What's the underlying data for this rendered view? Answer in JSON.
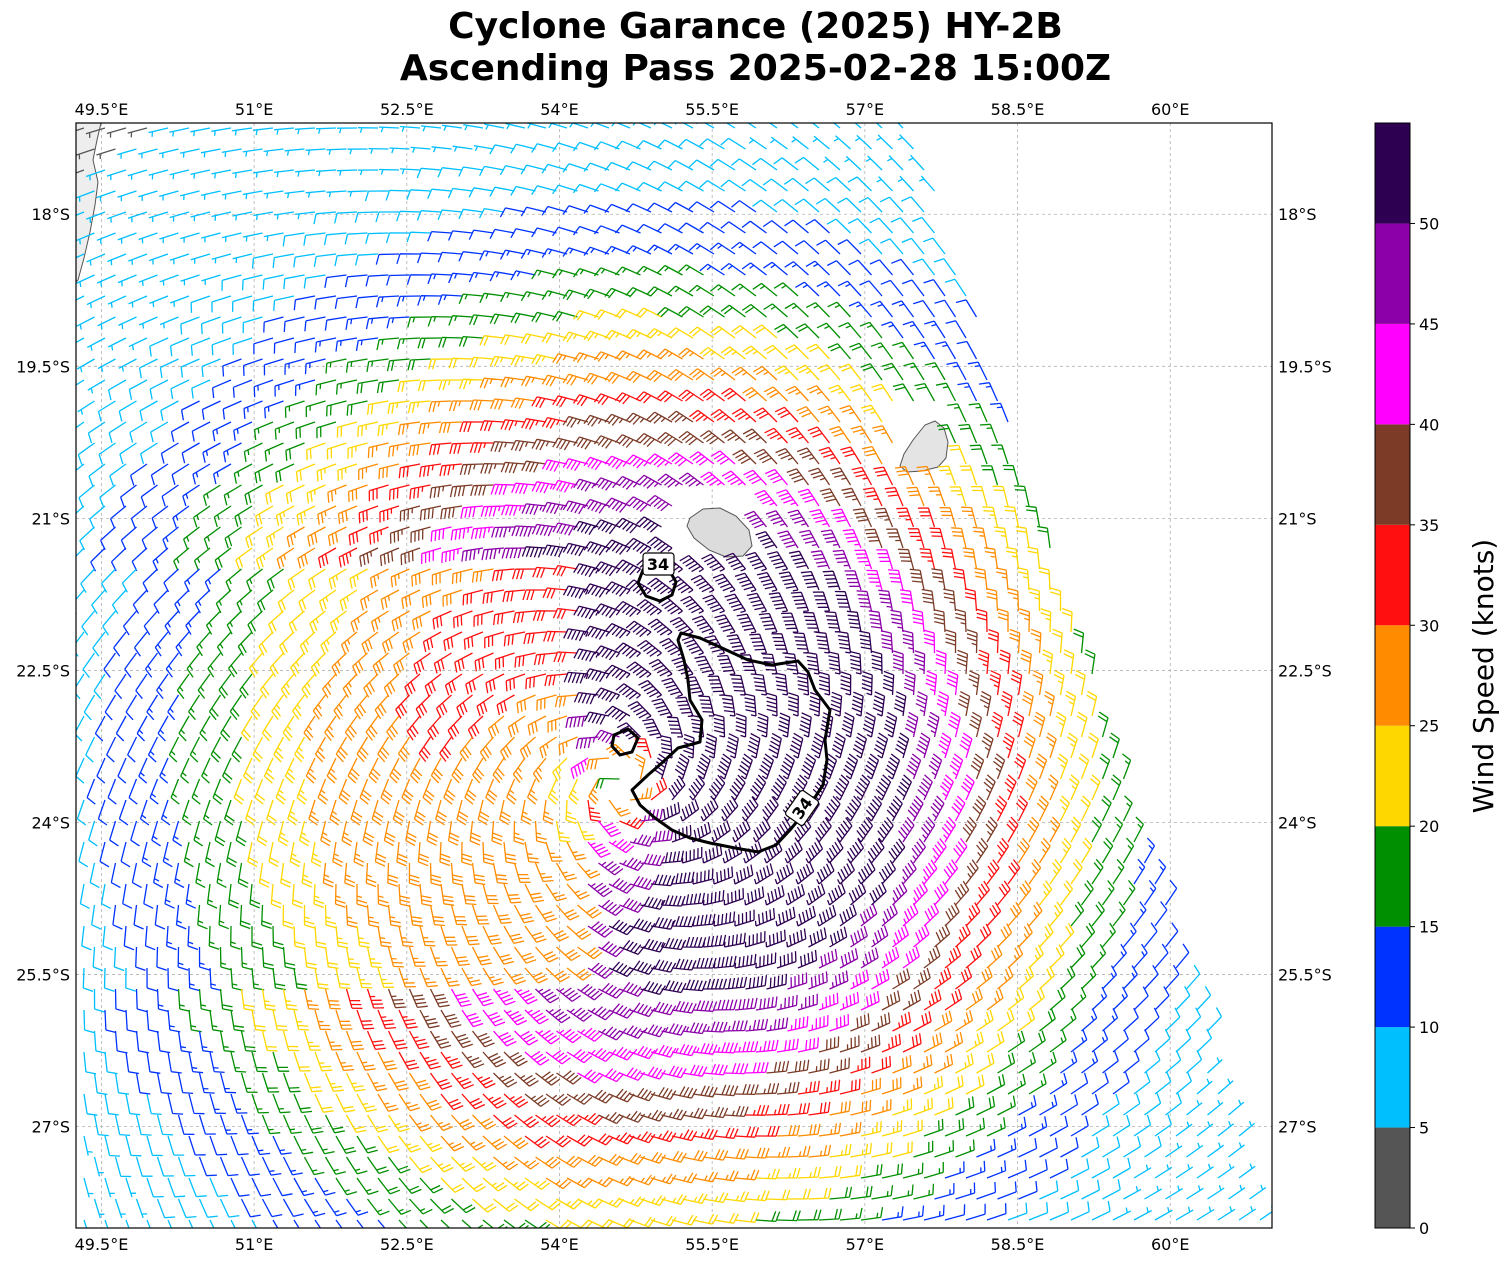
{
  "title": {
    "line1": "Cyclone Garance (2025) HY-2B",
    "line2": "Ascending Pass 2025-02-28 15:00Z"
  },
  "map": {
    "lon_range": [
      49.25,
      61.0
    ],
    "lat_range": [
      -28.0,
      -17.1
    ],
    "lon_ticks": [
      49.5,
      51.0,
      52.5,
      54.0,
      55.5,
      57.0,
      58.5,
      60.0
    ],
    "lon_tick_labels": [
      "49.5°E",
      "51°E",
      "52.5°E",
      "54°E",
      "55.5°E",
      "57°E",
      "58.5°E",
      "60°E"
    ],
    "lat_ticks": [
      -18.0,
      -19.5,
      -21.0,
      -22.5,
      -24.0,
      -25.5,
      -27.0
    ],
    "lat_tick_labels": [
      "18°S",
      "19.5°S",
      "21°S",
      "22.5°S",
      "24°S",
      "25.5°S",
      "27°S"
    ],
    "gridlines": true,
    "land_color": "#f0f0f0",
    "coast_color": "#555555",
    "contour_label": "34",
    "center": {
      "lon": 54.6,
      "lat": -23.6
    }
  },
  "colorbar": {
    "label": "Wind Speed (knots)",
    "bounds": [
      0,
      5,
      10,
      15,
      20,
      25,
      30,
      35,
      40,
      45,
      50,
      55
    ],
    "tick_labels": [
      "0",
      "5",
      "10",
      "15",
      "20",
      "25",
      "30",
      "35",
      "40",
      "45",
      "50"
    ],
    "colors": [
      "#555555",
      "#00bfff",
      "#0033ff",
      "#008f00",
      "#ffd700",
      "#ff8c00",
      "#ff0f0f",
      "#7b3b27",
      "#ff00ff",
      "#8b00a8",
      "#2e0052"
    ]
  }
}
